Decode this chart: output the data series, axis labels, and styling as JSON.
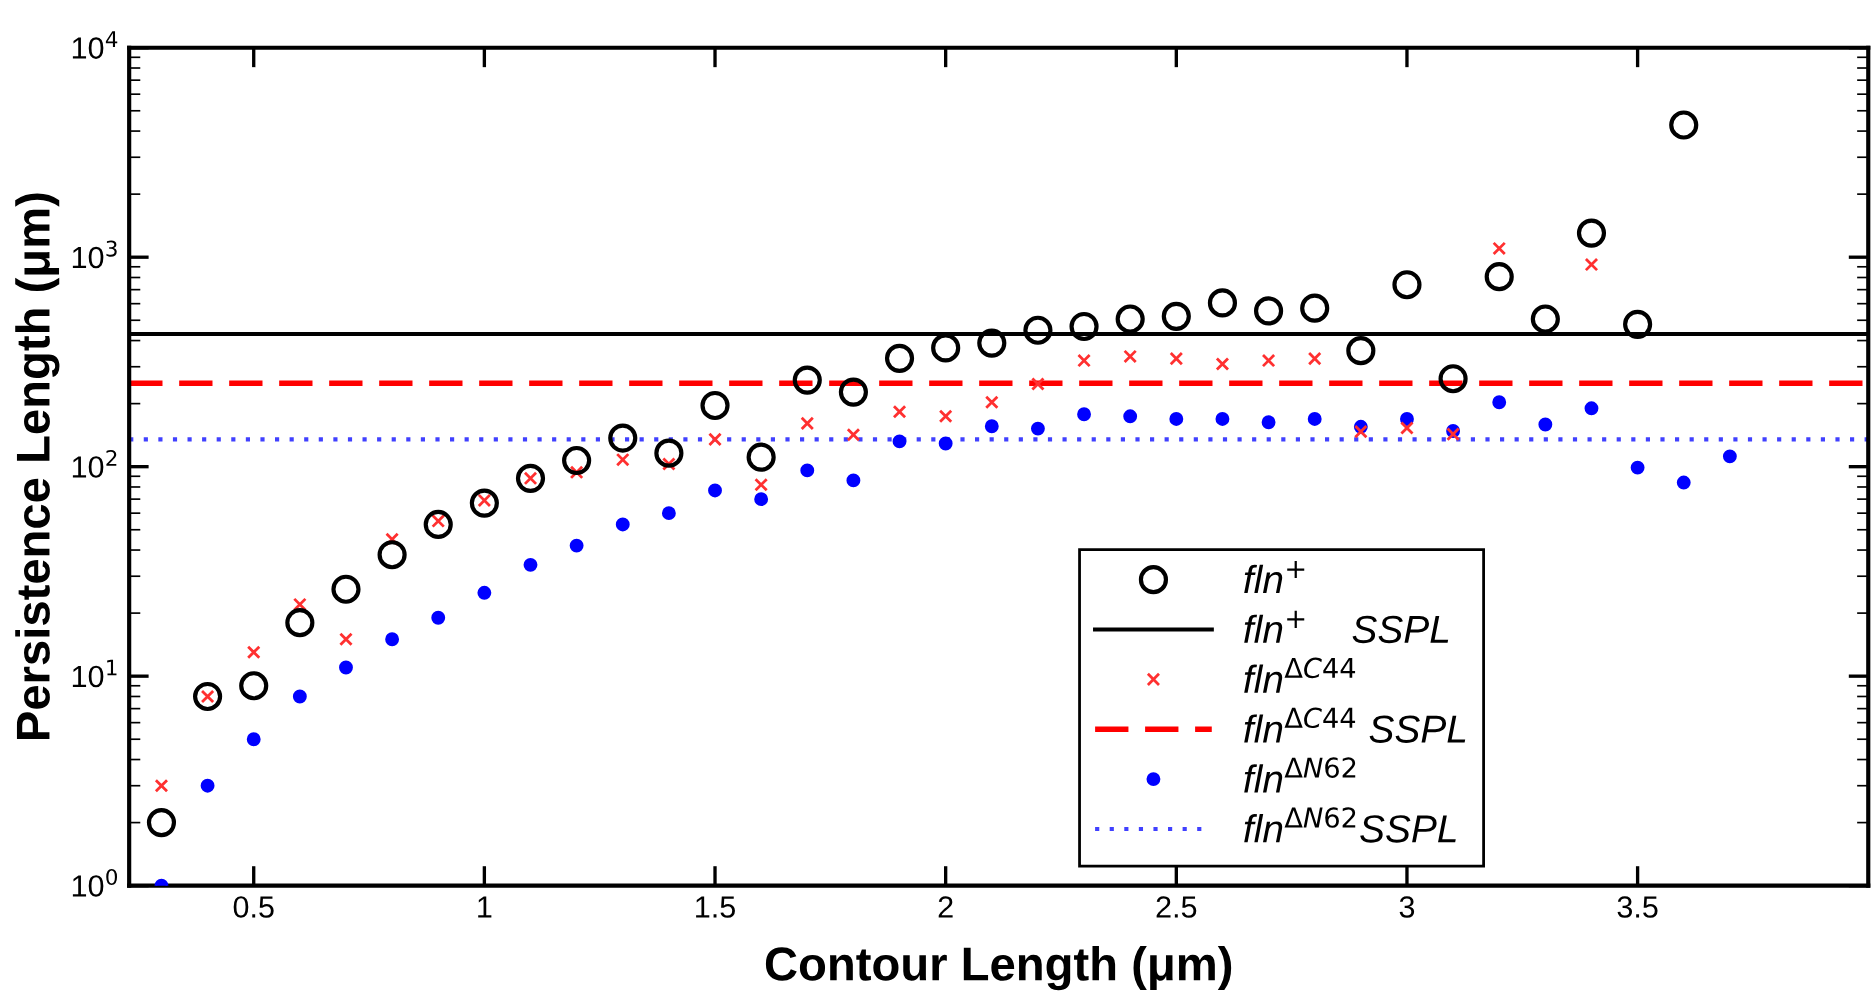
{
  "chart_data": {
    "type": "scatter",
    "xlabel": "Contour Length (μm)",
    "ylabel": "Persistence Length (μm)",
    "x": [
      0.3,
      0.4,
      0.5,
      0.6,
      0.7,
      0.8,
      0.9,
      1.0,
      1.1,
      1.2,
      1.3,
      1.4,
      1.5,
      1.6,
      1.7,
      1.8,
      1.9,
      2.0,
      2.1,
      2.2,
      2.3,
      2.4,
      2.5,
      2.6,
      2.7,
      2.8,
      2.9,
      3.0,
      3.1,
      3.2,
      3.3,
      3.4,
      3.5,
      3.6,
      3.7
    ],
    "series": [
      {
        "name": "fln$^{+}$",
        "color": "#000000",
        "marker": "circle",
        "values": [
          2.0,
          8.0,
          9.0,
          18,
          26,
          38,
          53,
          67,
          88,
          107,
          137,
          116,
          196,
          111,
          259,
          227,
          329,
          369,
          389,
          448,
          467,
          507,
          522,
          605,
          554,
          571,
          358,
          739,
          263,
          807,
          507,
          1303,
          478,
          4276,
          null
        ]
      },
      {
        "name": "fln$^{ΔC44}$",
        "color": "#ff3030",
        "marker": "cross",
        "values": [
          3.0,
          8.0,
          13,
          22,
          15,
          45,
          55,
          69,
          88,
          94,
          108,
          103,
          135,
          82,
          161,
          142,
          183,
          174,
          203,
          248,
          321,
          336,
          328,
          309,
          321,
          328,
          147,
          153,
          143,
          1101,
          null,
          922,
          null,
          null,
          null
        ]
      },
      {
        "name": "fln$^{ΔN62}$",
        "color": "#0000ff",
        "marker": "circle",
        "values": [
          1.0,
          3.0,
          5.0,
          8.0,
          11,
          15,
          19,
          25,
          34,
          42,
          53,
          60,
          77,
          70,
          96,
          86,
          132,
          129,
          156,
          152,
          178,
          174,
          169,
          169,
          163,
          169,
          155,
          169,
          148,
          203,
          159,
          190,
          99,
          84,
          112
        ]
      }
    ],
    "ref_lines": [
      {
        "axis": "y",
        "value": 430,
        "label": "fln$^{+}$    SSPL",
        "color": "#000000",
        "line_style": "solid"
      },
      {
        "axis": "y",
        "value": 250,
        "label": "fln$^{ΔC44}$ SSPL",
        "color": "#ff0000",
        "line_style": "dashed"
      },
      {
        "axis": "y",
        "value": 135,
        "label": "fln$^{ΔN62}$SSPL",
        "color": "#4040ff",
        "line_style": "dotted"
      }
    ],
    "log": "y",
    "xlim": [
      0.23,
      4
    ],
    "ylim": [
      1,
      10000
    ],
    "xticks": [
      0.5,
      1,
      1.5,
      2,
      2.5,
      3,
      3.5
    ],
    "yticks": [
      {
        "value": 1,
        "label": "10$^{0}$"
      },
      {
        "value": 10,
        "label": "10$^{1}$"
      },
      {
        "value": 100,
        "label": "10$^{2}$"
      },
      {
        "value": 1000,
        "label": "10$^{3}$"
      },
      {
        "value": 10000,
        "label": "10$^{4}$"
      }
    ],
    "grid": false,
    "legend": "bottom right"
  }
}
